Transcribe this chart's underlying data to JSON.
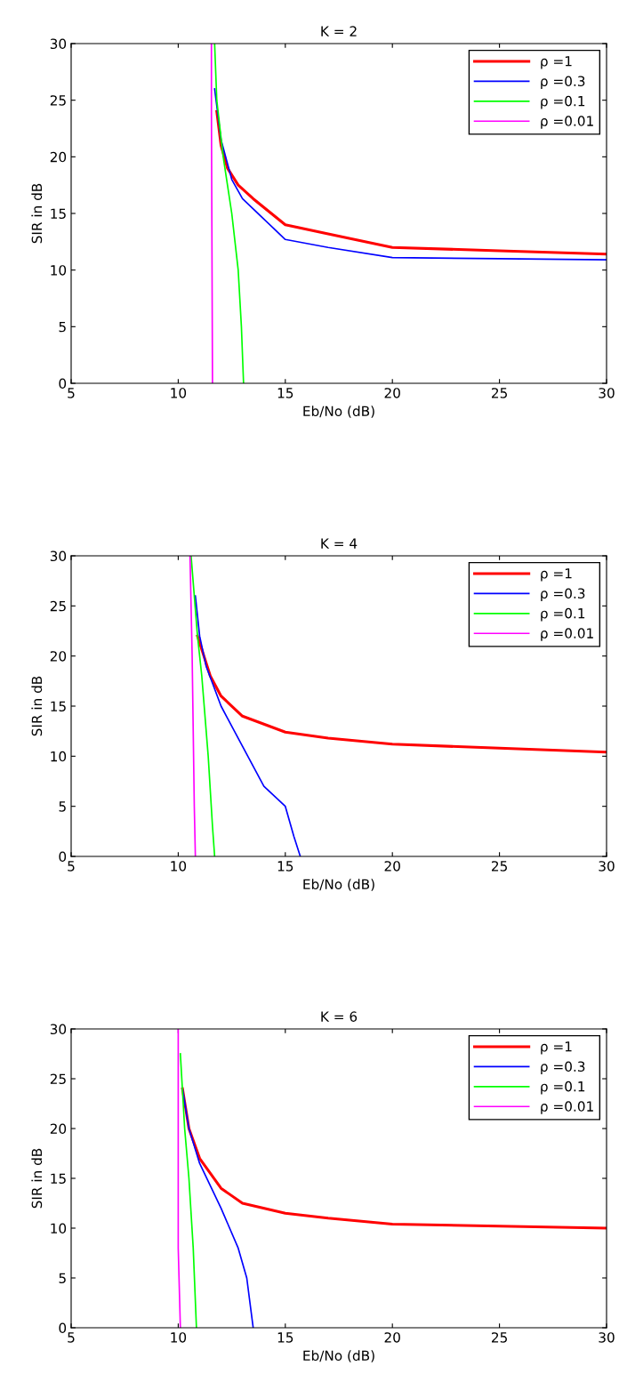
{
  "chart_data": [
    {
      "type": "line",
      "title": "K = 2",
      "xlabel": "Eb/No (dB)",
      "ylabel": "SIR in dB",
      "xlim": [
        5,
        30
      ],
      "ylim": [
        0,
        30
      ],
      "xticks": [
        5,
        10,
        15,
        20,
        25,
        30
      ],
      "yticks": [
        0,
        5,
        10,
        15,
        20,
        25,
        30
      ],
      "grid": false,
      "legend": "top right",
      "series": [
        {
          "name": "ρ =1",
          "color": "#ff0000",
          "x": [
            11.8,
            12.0,
            12.3,
            12.8,
            13.5,
            15,
            17,
            20,
            25,
            30
          ],
          "values": [
            24,
            21,
            19,
            17.5,
            16.3,
            14,
            13.2,
            12,
            11.7,
            11.4
          ]
        },
        {
          "name": "ρ =0.3",
          "color": "#0000ff",
          "x": [
            11.7,
            12.0,
            12.5,
            13,
            14,
            15,
            17,
            20,
            25,
            30
          ],
          "values": [
            26,
            21.5,
            18,
            16.3,
            14.5,
            12.7,
            12,
            11.1,
            11.0,
            10.9
          ]
        },
        {
          "name": "ρ =0.1",
          "color": "#00ff00",
          "x": [
            11.7,
            11.8,
            12.1,
            12.5,
            12.8,
            12.95,
            13.05
          ],
          "values": [
            30,
            25,
            20,
            15,
            10,
            5,
            0
          ]
        },
        {
          "name": "ρ =0.01",
          "color": "#ff00ff",
          "x": [
            11.55,
            11.55,
            11.6
          ],
          "values": [
            30,
            24,
            0
          ]
        }
      ]
    },
    {
      "type": "line",
      "title": "K = 4",
      "xlabel": "Eb/No (dB)",
      "ylabel": "SIR in dB",
      "xlim": [
        5,
        30
      ],
      "ylim": [
        0,
        30
      ],
      "xticks": [
        5,
        10,
        15,
        20,
        25,
        30
      ],
      "yticks": [
        0,
        5,
        10,
        15,
        20,
        25,
        30
      ],
      "grid": false,
      "legend": "top right",
      "series": [
        {
          "name": "ρ =1",
          "color": "#ff0000",
          "x": [
            10.9,
            11.5,
            12,
            13,
            15,
            17,
            20,
            25,
            30
          ],
          "values": [
            22,
            18,
            16,
            14,
            12.4,
            11.8,
            11.2,
            10.8,
            10.4
          ]
        },
        {
          "name": "ρ =0.3",
          "color": "#0000ff",
          "x": [
            10.8,
            11,
            11.3,
            12,
            13,
            14,
            15,
            15.4,
            15.7
          ],
          "values": [
            26,
            22,
            19,
            15,
            11,
            7,
            5,
            2,
            0
          ]
        },
        {
          "name": "ρ =0.1",
          "color": "#00ff00",
          "x": [
            10.6,
            10.9,
            11.1,
            11.4,
            11.6,
            11.7
          ],
          "values": [
            30,
            22,
            18,
            10,
            3,
            0
          ]
        },
        {
          "name": "ρ =0.01",
          "color": "#ff00ff",
          "x": [
            10.55,
            10.65,
            10.75,
            10.8
          ],
          "values": [
            30,
            20,
            5,
            0
          ]
        }
      ]
    },
    {
      "type": "line",
      "title": "K = 6",
      "xlabel": "Eb/No (dB)",
      "ylabel": "SIR in dB",
      "xlim": [
        5,
        30
      ],
      "ylim": [
        0,
        30
      ],
      "xticks": [
        5,
        10,
        15,
        20,
        25,
        30
      ],
      "yticks": [
        0,
        5,
        10,
        15,
        20,
        25,
        30
      ],
      "grid": false,
      "legend": "top right",
      "series": [
        {
          "name": "ρ =1",
          "color": "#ff0000",
          "x": [
            10.2,
            10.5,
            11,
            11.5,
            12,
            13,
            15,
            17,
            20,
            25,
            30
          ],
          "values": [
            24,
            20,
            17,
            15.5,
            14,
            12.5,
            11.5,
            11,
            10.4,
            10.2,
            10
          ]
        },
        {
          "name": "ρ =0.3",
          "color": "#0000ff",
          "x": [
            10.2,
            10.5,
            11,
            12,
            12.8,
            13.2,
            13.5
          ],
          "values": [
            24,
            20,
            16.5,
            12,
            8,
            5,
            0
          ]
        },
        {
          "name": "ρ =0.1",
          "color": "#00ff00",
          "x": [
            10.1,
            10.3,
            10.5,
            10.7,
            10.85
          ],
          "values": [
            27.5,
            20,
            15,
            8,
            0
          ]
        },
        {
          "name": "ρ =0.01",
          "color": "#ff00ff",
          "x": [
            10.0,
            10.0,
            10.1
          ],
          "values": [
            30,
            8,
            0
          ]
        }
      ]
    }
  ]
}
